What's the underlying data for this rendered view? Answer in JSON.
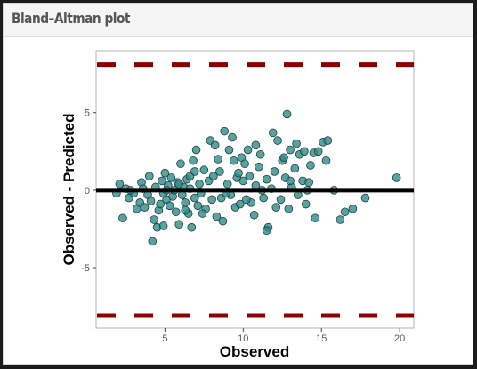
{
  "panel": {
    "title": "Bland–Altman plot"
  },
  "chart_data": {
    "type": "scatter",
    "title": "",
    "xlabel": "Observed",
    "ylabel": "Observed - Predicted",
    "xlim": [
      0.6,
      20.9
    ],
    "ylim": [
      -8.9,
      9.0
    ],
    "xticks": [
      5,
      10,
      15,
      20
    ],
    "yticks": [
      -5,
      0,
      5
    ],
    "grid": false,
    "colors": {
      "points": "#2e8b8b",
      "zero_line": "#000000",
      "limit_lines": "#8b0000"
    },
    "reference_lines": [
      {
        "name": "zero",
        "y": 0,
        "style": "solid"
      },
      {
        "name": "upper-limit",
        "y": 8.1,
        "style": "dashed"
      },
      {
        "name": "lower-limit",
        "y": -8.1,
        "style": "dashed"
      }
    ],
    "points": [
      [
        1.9,
        -0.2
      ],
      [
        2.1,
        0.4
      ],
      [
        2.3,
        -1.8
      ],
      [
        2.5,
        0.1
      ],
      [
        2.7,
        -0.5
      ],
      [
        3.0,
        -0.2
      ],
      [
        3.2,
        -1.2
      ],
      [
        3.4,
        -0.8
      ],
      [
        3.5,
        0.5
      ],
      [
        3.7,
        -1.1
      ],
      [
        3.9,
        -0.3
      ],
      [
        4.0,
        0.9
      ],
      [
        4.1,
        -0.7
      ],
      [
        4.3,
        -1.9
      ],
      [
        4.4,
        0.2
      ],
      [
        4.5,
        -2.4
      ],
      [
        4.6,
        -1.3
      ],
      [
        4.2,
        -3.3
      ],
      [
        4.8,
        0.6
      ],
      [
        4.9,
        -0.2
      ],
      [
        5.0,
        1.1
      ],
      [
        5.1,
        -0.6
      ],
      [
        5.2,
        0.3
      ],
      [
        5.3,
        -1.0
      ],
      [
        5.4,
        0.8
      ],
      [
        5.5,
        -0.4
      ],
      [
        5.6,
        0.0
      ],
      [
        5.7,
        -1.4
      ],
      [
        5.8,
        0.5
      ],
      [
        5.9,
        -2.2
      ],
      [
        6.0,
        1.7
      ],
      [
        6.1,
        -0.3
      ],
      [
        6.2,
        0.2
      ],
      [
        6.3,
        -0.8
      ],
      [
        6.4,
        0.7
      ],
      [
        6.5,
        -1.5
      ],
      [
        6.6,
        0.1
      ],
      [
        6.7,
        -2.4
      ],
      [
        6.8,
        1.9
      ],
      [
        6.9,
        -0.5
      ],
      [
        7.0,
        2.6
      ],
      [
        7.1,
        -1.0
      ],
      [
        7.2,
        0.4
      ],
      [
        7.3,
        -0.2
      ],
      [
        7.5,
        1.3
      ],
      [
        7.6,
        -1.2
      ],
      [
        7.8,
        0.6
      ],
      [
        7.9,
        3.2
      ],
      [
        8.0,
        -0.6
      ],
      [
        8.1,
        0.9
      ],
      [
        8.3,
        -1.7
      ],
      [
        8.4,
        2.0
      ],
      [
        8.5,
        1.2
      ],
      [
        8.6,
        -0.5
      ],
      [
        8.7,
        -2.0
      ],
      [
        8.8,
        3.8
      ],
      [
        9.0,
        0.4
      ],
      [
        9.1,
        2.6
      ],
      [
        9.2,
        -0.3
      ],
      [
        9.3,
        3.4
      ],
      [
        9.4,
        1.9
      ],
      [
        9.5,
        -1.1
      ],
      [
        9.6,
        0.8
      ],
      [
        9.8,
        -0.9
      ],
      [
        9.9,
        2.1
      ],
      [
        10.0,
        0.6
      ],
      [
        10.1,
        1.7
      ],
      [
        10.3,
        2.6
      ],
      [
        10.4,
        0.9
      ],
      [
        10.5,
        -0.8
      ],
      [
        10.7,
        -1.6
      ],
      [
        10.8,
        0.3
      ],
      [
        11.0,
        1.5
      ],
      [
        11.1,
        2.3
      ],
      [
        11.3,
        -0.5
      ],
      [
        11.5,
        0.7
      ],
      [
        11.6,
        -2.4
      ],
      [
        11.8,
        0.1
      ],
      [
        11.9,
        3.7
      ],
      [
        12.0,
        1.2
      ],
      [
        12.1,
        -1.1
      ],
      [
        12.2,
        3.2
      ],
      [
        12.4,
        -0.6
      ],
      [
        12.5,
        1.9
      ],
      [
        12.7,
        0.8
      ],
      [
        12.8,
        4.9
      ],
      [
        12.9,
        -1.2
      ],
      [
        13.0,
        2.6
      ],
      [
        13.1,
        0.2
      ],
      [
        13.3,
        1.4
      ],
      [
        13.4,
        3.0
      ],
      [
        13.5,
        -0.3
      ],
      [
        13.6,
        2.3
      ],
      [
        13.8,
        0.6
      ],
      [
        13.9,
        2.5
      ],
      [
        14.0,
        -0.9
      ],
      [
        14.2,
        0.5
      ],
      [
        14.3,
        1.6
      ],
      [
        14.5,
        2.4
      ],
      [
        14.6,
        -1.8
      ],
      [
        14.8,
        2.5
      ],
      [
        15.1,
        3.1
      ],
      [
        15.3,
        1.9
      ],
      [
        15.4,
        3.2
      ],
      [
        15.8,
        0.0
      ],
      [
        16.2,
        -1.9
      ],
      [
        16.5,
        -1.4
      ],
      [
        17.0,
        -1.2
      ],
      [
        17.8,
        -0.5
      ],
      [
        19.8,
        0.8
      ],
      [
        7.4,
        -1.5
      ],
      [
        6.6,
        0.9
      ],
      [
        5.9,
        0.4
      ],
      [
        8.2,
        2.9
      ],
      [
        10.8,
        2.9
      ],
      [
        12.6,
        2.1
      ],
      [
        3.6,
        0.1
      ],
      [
        2.8,
        0.0
      ],
      [
        4.7,
        -0.9
      ],
      [
        6.3,
        -1.3
      ],
      [
        9.7,
        1.1
      ],
      [
        11.2,
        0.0
      ],
      [
        13.0,
        0.6
      ],
      [
        14.1,
        0.0
      ],
      [
        8.9,
        -0.2
      ],
      [
        11.5,
        -2.6
      ],
      [
        5.1,
        0.0
      ],
      [
        6.9,
        1.2
      ],
      [
        4.9,
        -2.3
      ],
      [
        10.2,
        -0.6
      ]
    ]
  }
}
